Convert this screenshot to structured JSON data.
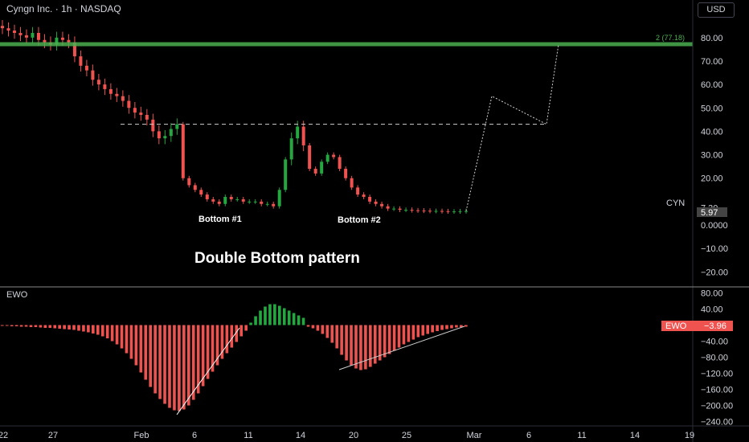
{
  "header": {
    "title": "Cyngn Inc. · 1h · NASDAQ",
    "currency": "USD"
  },
  "colors": {
    "background": "#000000",
    "up": "#26a641",
    "down": "#ef5350",
    "grid_line": "#3a3a3a",
    "target_line": "#4caf50",
    "ewo_label": "#ef5350"
  },
  "price_axis": {
    "ticks": [
      "80.00",
      "70.00",
      "60.00",
      "50.00",
      "40.00",
      "30.00",
      "20.00",
      "7.30",
      "0.0000",
      "−10.00",
      "−20.00"
    ],
    "symbol_label": "CYN",
    "last_price": "5.97"
  },
  "target_level": {
    "label": "2 (77.18)",
    "value": 77.18
  },
  "neckline_value": 43,
  "annotations": {
    "bottom1": "Bottom #1",
    "bottom2": "Bottom #2",
    "pattern": "Double Bottom pattern"
  },
  "indicator": {
    "name": "EWO",
    "label": "EWO",
    "value": "−3.96",
    "ticks": [
      "80.00",
      "40.00",
      "0.00",
      "−40.00",
      "−80.00",
      "−120.00",
      "−160.00",
      "−200.00",
      "−240.00"
    ]
  },
  "time_axis": {
    "labels": [
      "22",
      "27",
      "Feb",
      "6",
      "11",
      "14",
      "20",
      "25",
      "Mar",
      "6",
      "11",
      "14",
      "19"
    ]
  },
  "chart_data": [
    {
      "type": "candlestick",
      "title": "Cyngn Inc. · 1h · NASDAQ",
      "y_unit": "USD",
      "ylim": [
        -25,
        90
      ],
      "close_path": [
        84,
        83,
        82,
        81,
        80,
        82,
        79,
        78,
        77,
        80,
        79,
        78,
        72,
        68,
        66,
        62,
        60,
        58,
        56,
        55,
        53,
        50,
        48,
        47,
        45,
        40,
        37,
        38,
        41,
        43,
        20,
        17,
        15,
        13,
        11,
        10,
        9,
        12,
        11,
        11,
        10,
        10,
        10,
        9,
        9,
        8,
        15,
        28,
        37,
        42,
        34,
        24,
        22,
        27,
        30,
        29,
        24,
        20,
        16,
        13,
        12,
        10,
        9,
        8,
        7,
        7,
        6.5,
        6.5,
        6.3,
        6.2,
        6.1,
        6.0,
        6.0,
        5.9,
        5.8,
        5.8,
        5.9,
        5.97
      ],
      "projection": [
        5.97,
        55,
        43,
        77.18
      ],
      "neckline": 43,
      "target": 77.18,
      "last": 5.97
    },
    {
      "type": "bar",
      "title": "EWO",
      "ylim": [
        -245,
        85
      ],
      "values": [
        -2,
        -2,
        -3,
        -3,
        -4,
        -4,
        -5,
        -5,
        -6,
        -7,
        -7,
        -8,
        -9,
        -10,
        -11,
        -12,
        -14,
        -16,
        -18,
        -21,
        -24,
        -28,
        -33,
        -40,
        -48,
        -58,
        -70,
        -84,
        -100,
        -118,
        -136,
        -154,
        -170,
        -184,
        -196,
        -206,
        -212,
        -214,
        -210,
        -200,
        -186,
        -170,
        -152,
        -134,
        -116,
        -100,
        -84,
        -70,
        -56,
        -42,
        -28,
        -14,
        6,
        22,
        36,
        46,
        52,
        52,
        48,
        42,
        36,
        30,
        24,
        18,
        -4,
        -8,
        -14,
        -22,
        -32,
        -44,
        -58,
        -74,
        -88,
        -100,
        -108,
        -112,
        -110,
        -104,
        -96,
        -88,
        -80,
        -72,
        -64,
        -56,
        -48,
        -42,
        -36,
        -30,
        -26,
        -22,
        -18,
        -15,
        -12,
        -10,
        -8,
        -6,
        -5,
        -4
      ]
    }
  ]
}
